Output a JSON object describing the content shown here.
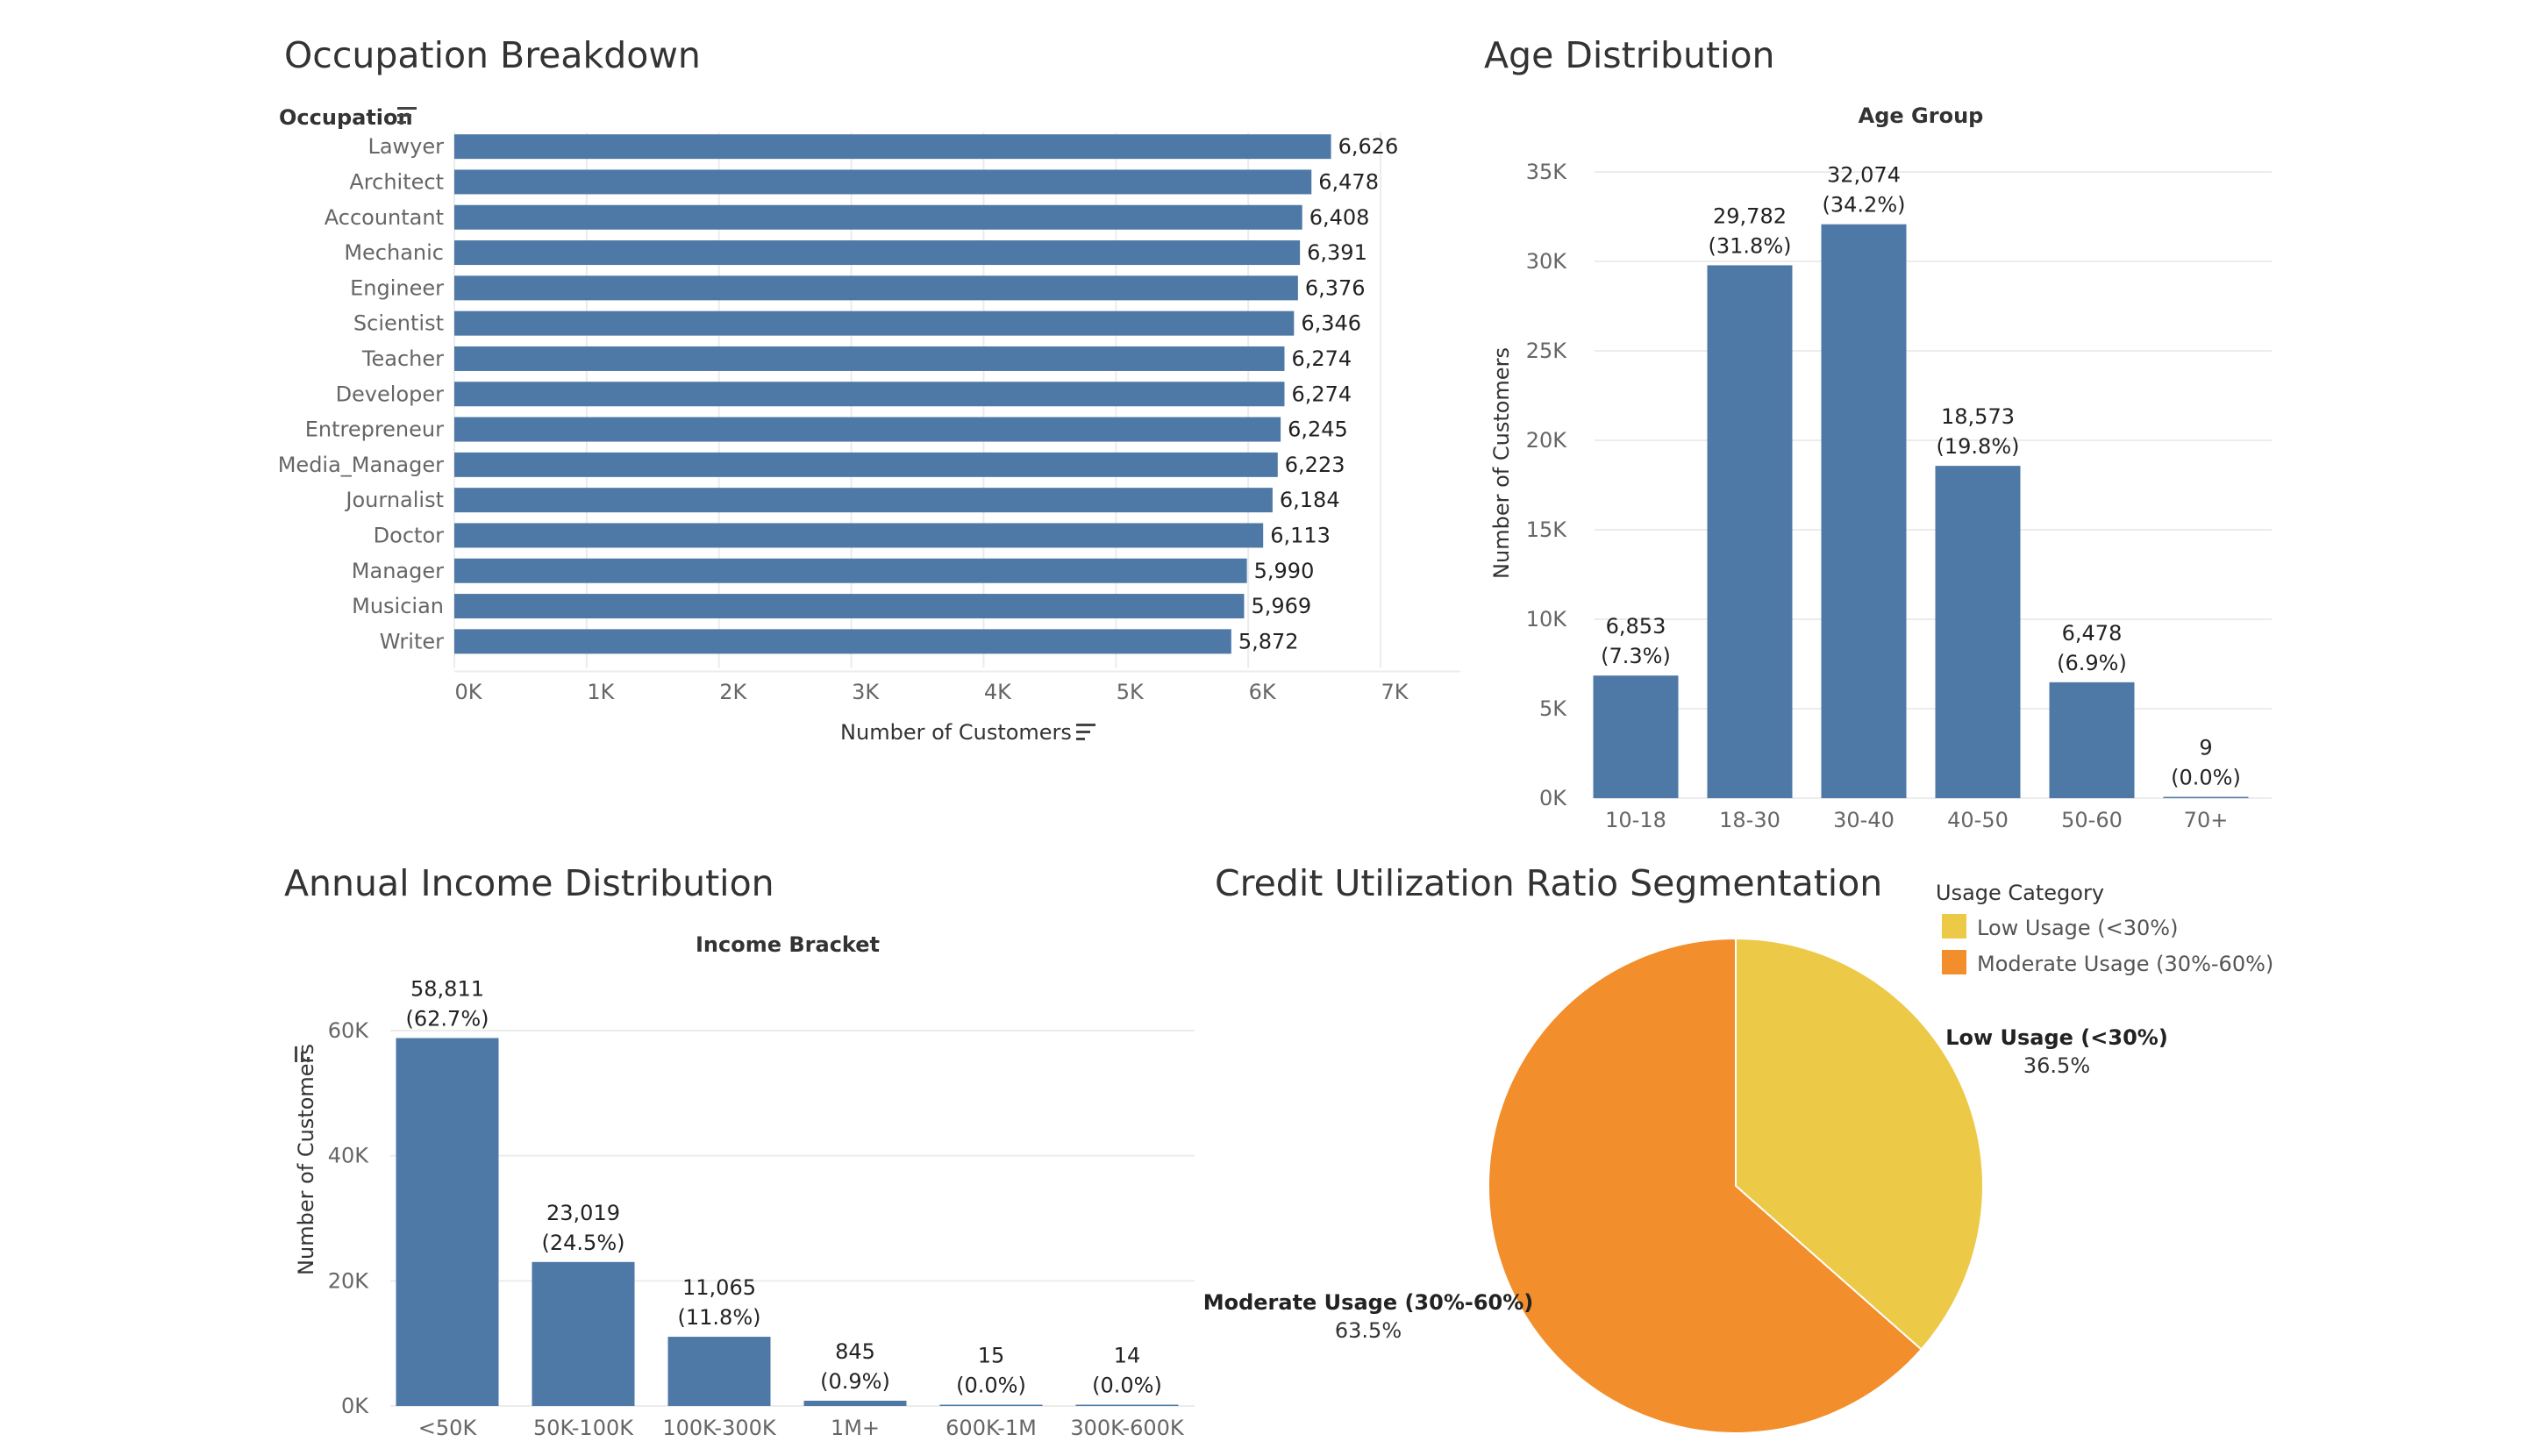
{
  "colors": {
    "bar": "#4e79a7",
    "low": "#edc948",
    "moderate": "#f28e2b"
  },
  "chart_data": [
    {
      "type": "bar",
      "orientation": "horizontal",
      "title": "Occupation Breakdown",
      "ylabel": "Occupation",
      "xlabel": "Number of Customers",
      "categories": [
        "Lawyer",
        "Architect",
        "Accountant",
        "Mechanic",
        "Engineer",
        "Scientist",
        "Teacher",
        "Developer",
        "Entrepreneur",
        "Media_Manager",
        "Journalist",
        "Doctor",
        "Manager",
        "Musician",
        "Writer"
      ],
      "values": [
        6626,
        6478,
        6408,
        6391,
        6376,
        6346,
        6274,
        6274,
        6245,
        6223,
        6184,
        6113,
        5990,
        5969,
        5872
      ],
      "value_labels": [
        "6,626",
        "6,478",
        "6,408",
        "6,391",
        "6,376",
        "6,346",
        "6,274",
        "6,274",
        "6,245",
        "6,223",
        "6,184",
        "6,113",
        "5,990",
        "5,969",
        "5,872"
      ],
      "xticks": [
        0,
        1000,
        2000,
        3000,
        4000,
        5000,
        6000,
        7000
      ],
      "xtick_labels": [
        "0K",
        "1K",
        "2K",
        "3K",
        "4K",
        "5K",
        "6K",
        "7K"
      ],
      "xlim": [
        0,
        7300
      ]
    },
    {
      "type": "bar",
      "title": "Age Distribution",
      "header": "Age Group",
      "ylabel": "Number of Customers",
      "categories": [
        "10-18",
        "18-30",
        "30-40",
        "40-50",
        "50-60",
        "70+"
      ],
      "values": [
        6853,
        29782,
        32074,
        18573,
        6478,
        9
      ],
      "value_labels": [
        "6,853",
        "29,782",
        "32,074",
        "18,573",
        "6,478",
        "9"
      ],
      "pct_labels": [
        "(7.3%)",
        "(31.8%)",
        "(34.2%)",
        "(19.8%)",
        "(6.9%)",
        "(0.0%)"
      ],
      "yticks": [
        0,
        5000,
        10000,
        15000,
        20000,
        25000,
        30000,
        35000
      ],
      "ytick_labels": [
        "0K",
        "5K",
        "10K",
        "15K",
        "20K",
        "25K",
        "30K",
        "35K"
      ],
      "ylim": [
        0,
        35000
      ]
    },
    {
      "type": "bar",
      "title": "Annual Income Distribution",
      "header": "Income Bracket",
      "ylabel": "Number of Customers",
      "categories": [
        "<50K",
        "50K-100K",
        "100K-300K",
        "1M+",
        "600K-1M",
        "300K-600K"
      ],
      "values": [
        58811,
        23019,
        11065,
        845,
        15,
        14
      ],
      "value_labels": [
        "58,811",
        "23,019",
        "11,065",
        "845",
        "15",
        "14"
      ],
      "pct_labels": [
        "(62.7%)",
        "(24.5%)",
        "(11.8%)",
        "(0.9%)",
        "(0.0%)",
        "(0.0%)"
      ],
      "yticks": [
        0,
        20000,
        40000,
        60000
      ],
      "ytick_labels": [
        "0K",
        "20K",
        "40K",
        "60K"
      ],
      "ylim": [
        0,
        60000
      ]
    },
    {
      "type": "pie",
      "title": "Credit Utilization Ratio Segmentation",
      "legend_title": "Usage Category",
      "legend": "top-right",
      "slices": [
        {
          "label": "Low Usage (<30%)",
          "value": 36.5,
          "pct_label": "36.5%"
        },
        {
          "label": "Moderate Usage (30%-60%)",
          "value": 63.5,
          "pct_label": "63.5%"
        }
      ]
    }
  ]
}
